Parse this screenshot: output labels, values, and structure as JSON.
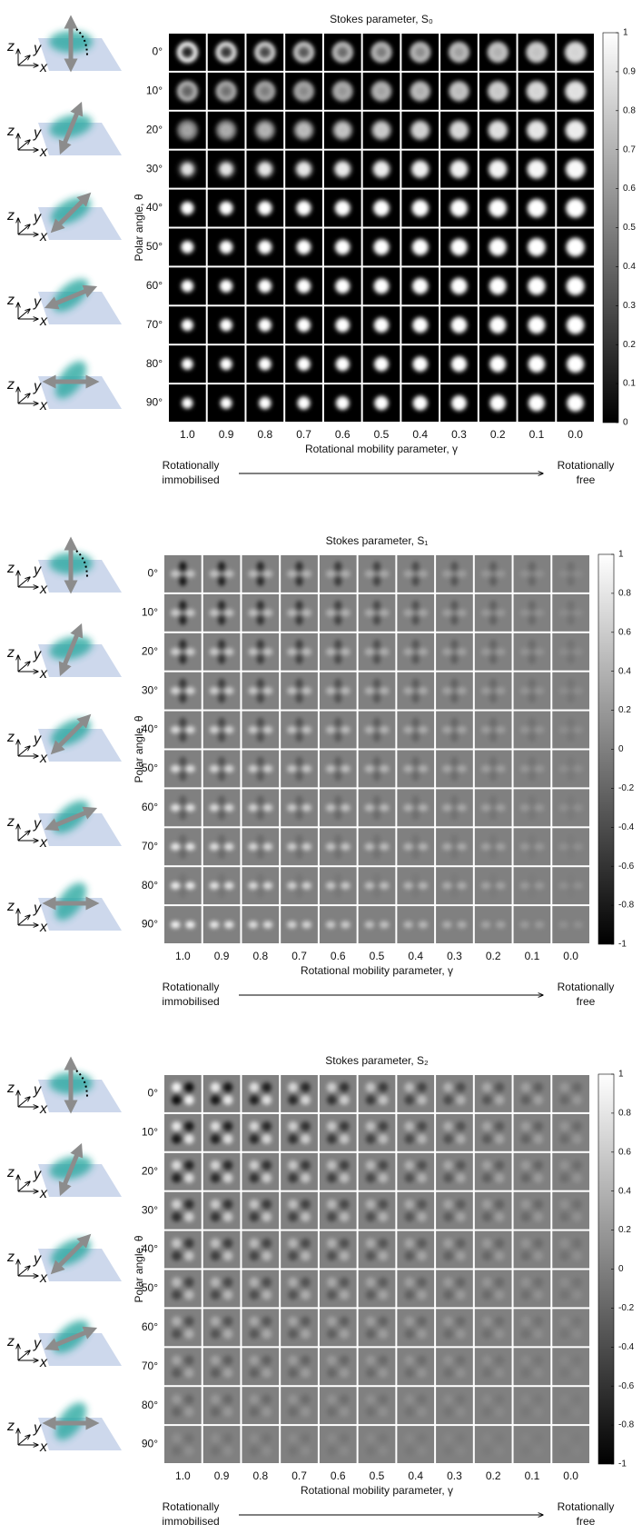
{
  "panels": [
    {
      "title": "Stokes parameter, S₀",
      "kind": "s0",
      "colorbar": {
        "range": [
          0,
          1
        ],
        "ticks": [
          1,
          0.9,
          0.8,
          0.7,
          0.6,
          0.5,
          0.4,
          0.3,
          0.2,
          0.1,
          0
        ]
      }
    },
    {
      "title": "Stokes parameter, S₁",
      "kind": "s1",
      "colorbar": {
        "range": [
          -1,
          1
        ],
        "ticks": [
          1,
          0.8,
          0.6,
          0.4,
          0.2,
          0,
          -0.2,
          -0.4,
          -0.6,
          -0.8,
          -1
        ]
      }
    },
    {
      "title": "Stokes parameter, S₂",
      "kind": "s2",
      "colorbar": {
        "range": [
          -1,
          1
        ],
        "ticks": [
          1,
          0.8,
          0.6,
          0.4,
          0.2,
          0,
          -0.2,
          -0.4,
          -0.6,
          -0.8,
          -1
        ]
      }
    }
  ],
  "row_labels": [
    "0°",
    "10°",
    "20°",
    "30°",
    "40°",
    "50°",
    "60°",
    "70°",
    "80°",
    "90°"
  ],
  "column_labels": [
    "1.0",
    "0.9",
    "0.8",
    "0.7",
    "0.6",
    "0.5",
    "0.4",
    "0.3",
    "0.2",
    "0.1",
    "0.0"
  ],
  "x_label": "Rotational mobility parameter, γ",
  "y_label": "Polar angle, θ",
  "left_note": [
    "Rotationally",
    "immobilised"
  ],
  "right_note": [
    "Rotationally",
    "free"
  ],
  "schematic_axis_labels": [
    "z",
    "y",
    "x"
  ]
}
